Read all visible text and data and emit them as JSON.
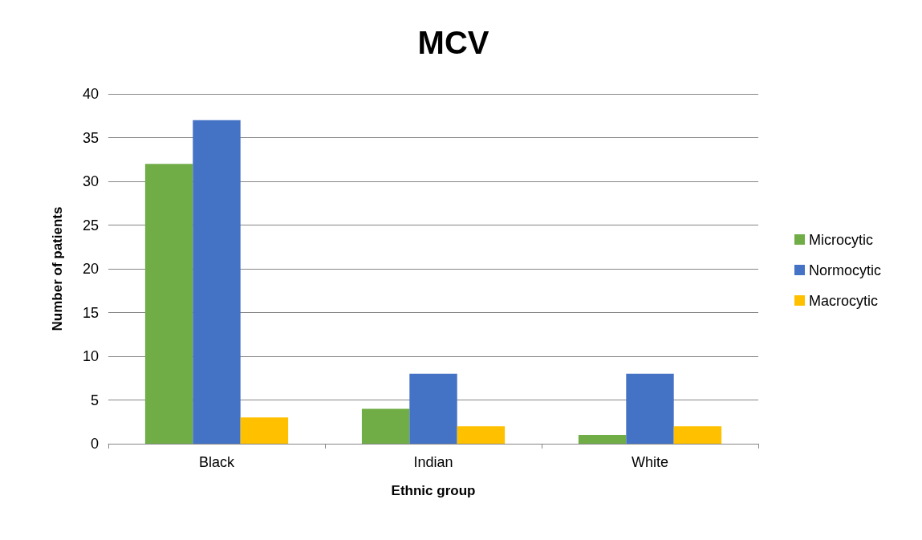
{
  "chart_data": {
    "type": "bar",
    "title": "MCV",
    "xlabel": "Ethnic group",
    "ylabel": "Number of patients",
    "categories": [
      "Black",
      "Indian",
      "White"
    ],
    "series": [
      {
        "name": "Microcytic",
        "color": "#70ad47",
        "values": [
          32,
          4,
          1
        ]
      },
      {
        "name": "Normocytic",
        "color": "#4472c4",
        "values": [
          37,
          8,
          8
        ]
      },
      {
        "name": "Macrocytic",
        "color": "#ffc000",
        "values": [
          3,
          2,
          2
        ]
      }
    ],
    "ylim": [
      0,
      40
    ],
    "yticks": [
      0,
      5,
      10,
      15,
      20,
      25,
      30,
      35,
      40
    ],
    "grid": "y",
    "legend": "right"
  }
}
